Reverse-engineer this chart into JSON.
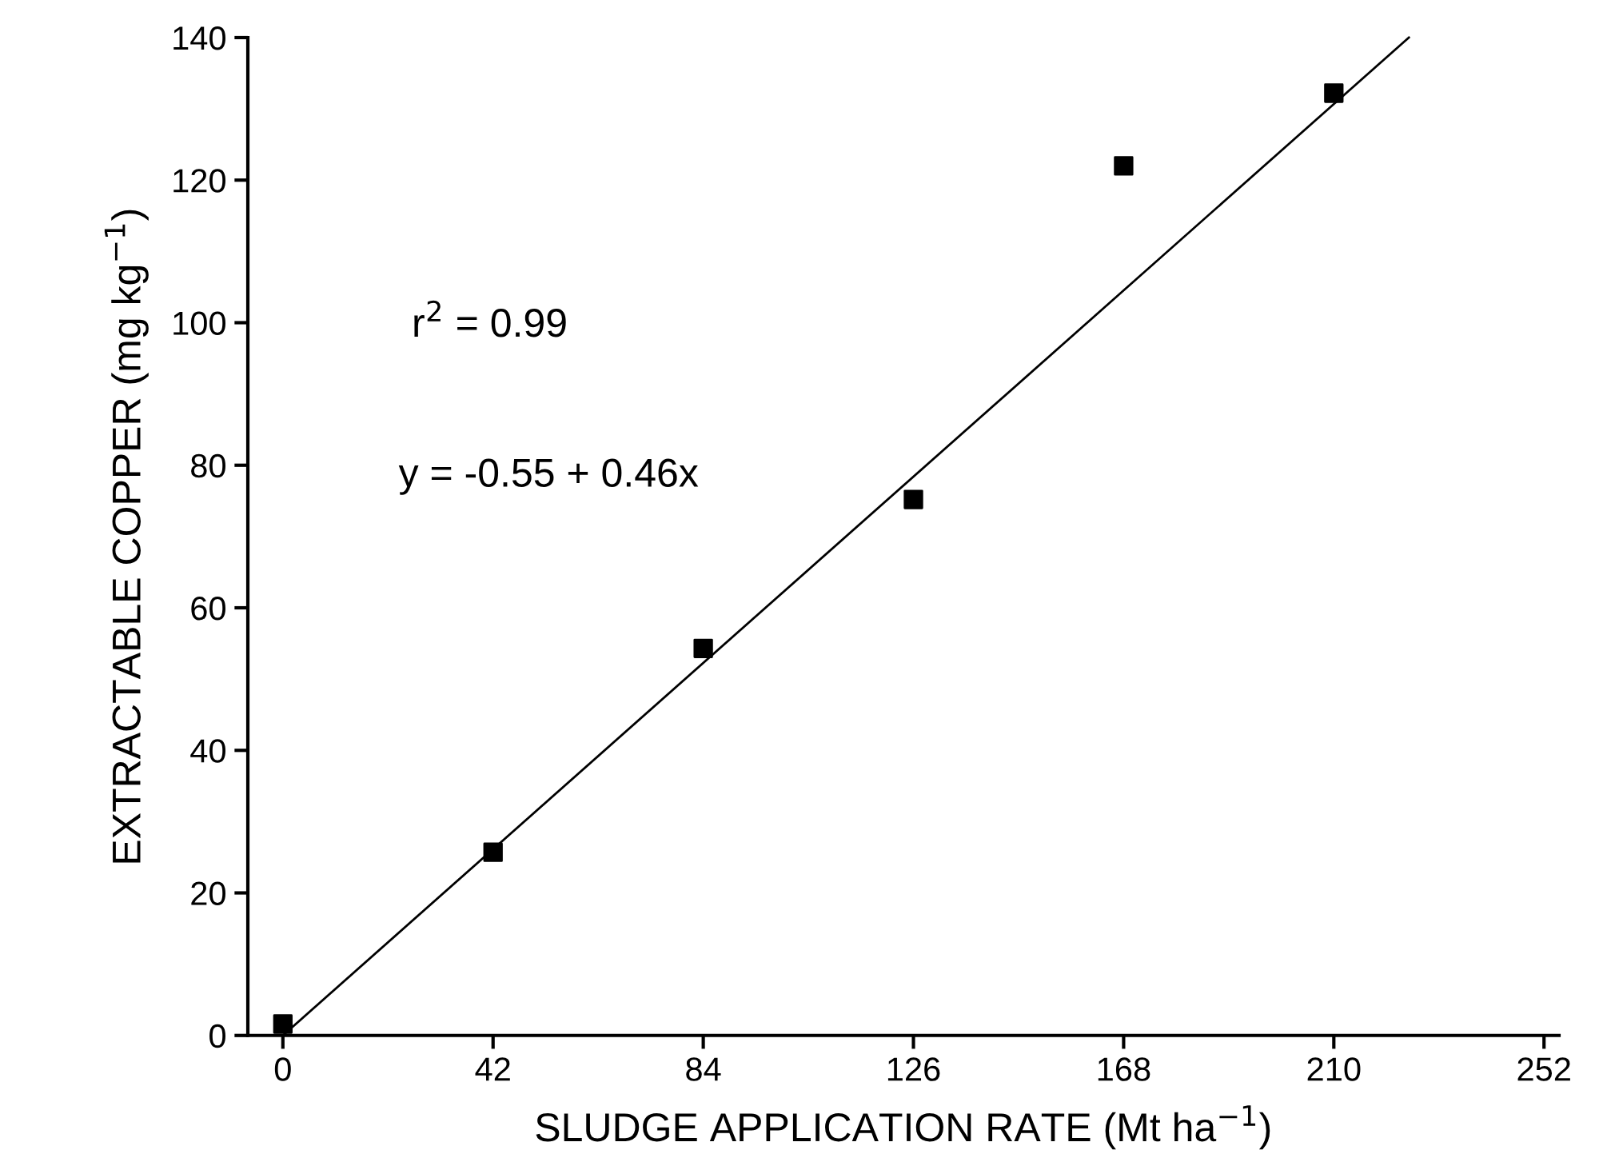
{
  "chart_data": {
    "type": "scatter",
    "xlabel": "SLUDGE APPLICATION RATE (Mt ha$^{−1}$)",
    "ylabel": "EXTRACTABLE COPPER (mg kg$^{−1}$)",
    "x": [
      0,
      42,
      84,
      126,
      168,
      210
    ],
    "series": [
      {
        "color": "#000000",
        "marker": "square",
        "values": [
          1.6,
          25.7,
          54.3,
          75.2,
          122,
          132.2
        ]
      },
      {
        "type": "line",
        "color": "#000000",
        "marker": "none",
        "line_style": "solid",
        "x": [
          0,
          225
        ],
        "values": [
          0,
          140
        ]
      }
    ],
    "xlim": [
      -7,
      255
    ],
    "xticks": [
      0,
      42,
      84,
      126,
      168,
      210,
      252
    ],
    "ylim": [
      0,
      140
    ],
    "yticks": [
      0,
      20,
      40,
      60,
      80,
      100,
      120,
      140
    ],
    "grid": false,
    "legend": false,
    "annotations": [
      "r$^{2}$ = 0.99",
      "y = -0.55 + 0.46x"
    ]
  }
}
